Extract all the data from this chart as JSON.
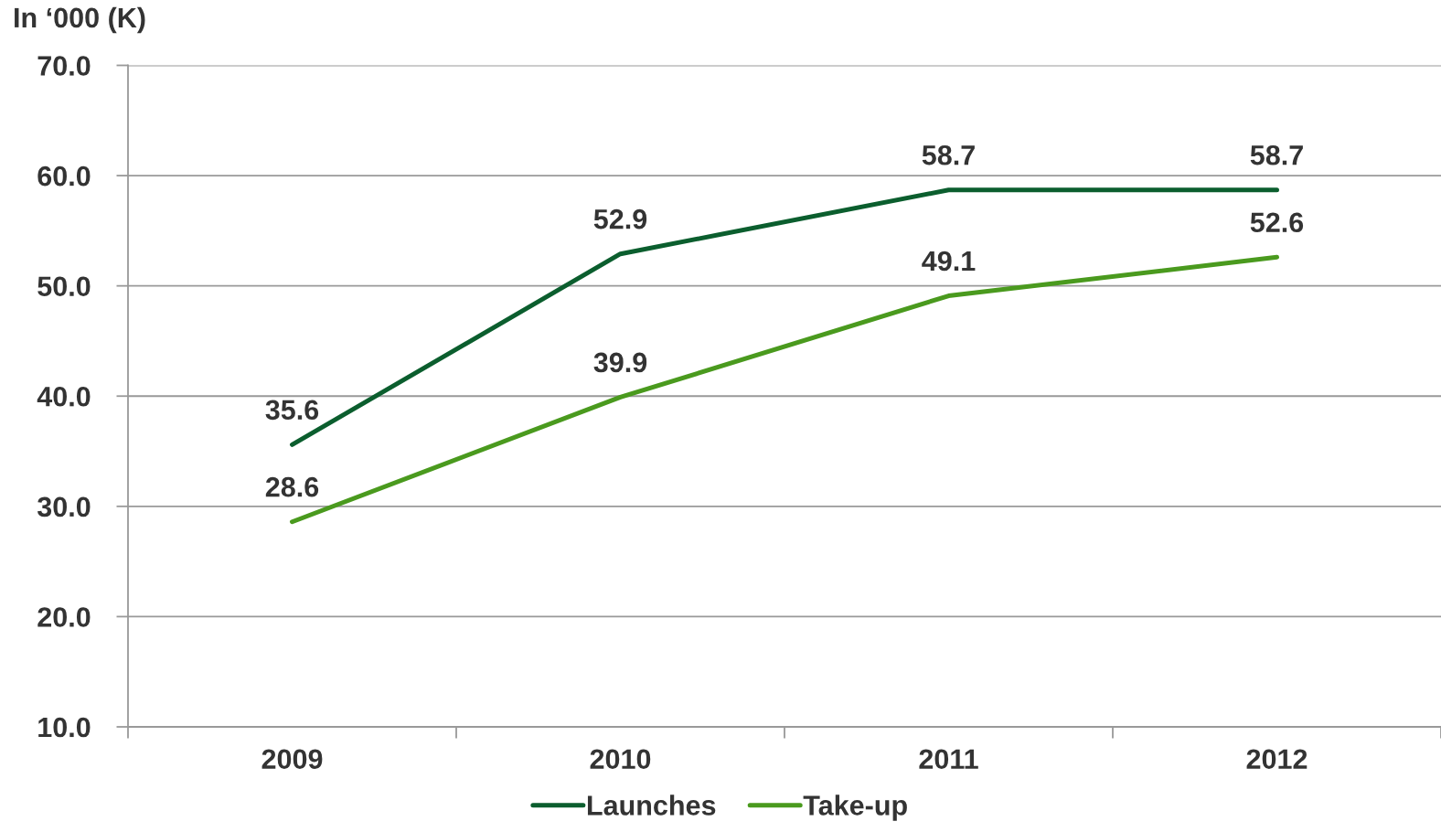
{
  "chart_data": {
    "type": "line",
    "ylabel": "In ‘000 (K)",
    "categories": [
      "2009",
      "2010",
      "2011",
      "2012"
    ],
    "series": [
      {
        "name": "Launches",
        "color": "#0b5e2e",
        "values": [
          35.6,
          52.9,
          58.7,
          58.7
        ]
      },
      {
        "name": "Take-up",
        "color": "#4a9a1e",
        "values": [
          28.6,
          39.9,
          49.1,
          52.6
        ]
      }
    ],
    "ylim": [
      10,
      70
    ],
    "yticks": [
      {
        "value": 10,
        "label": "10.0"
      },
      {
        "value": 20,
        "label": "20.0"
      },
      {
        "value": 30,
        "label": "30.0"
      },
      {
        "value": 40,
        "label": "40.0"
      },
      {
        "value": 50,
        "label": "50.0"
      },
      {
        "value": 60,
        "label": "60.0"
      },
      {
        "value": 70,
        "label": "70.0"
      }
    ],
    "grid": "y",
    "legend": "bottom",
    "data_labels": true,
    "marker": "none",
    "line_style": "solid"
  }
}
